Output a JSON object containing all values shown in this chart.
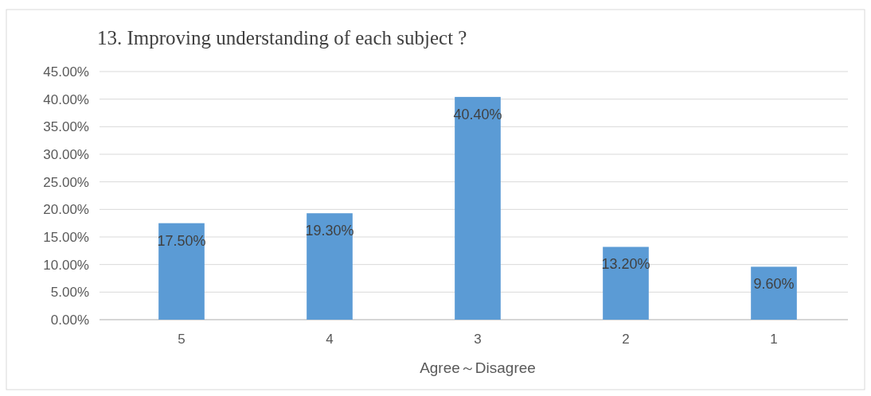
{
  "chart_data": {
    "type": "bar",
    "title": "13. Improving understanding of each subject ?",
    "xlabel": "Agree～Disagree",
    "categories": [
      "5",
      "4",
      "3",
      "2",
      "1"
    ],
    "values": [
      17.5,
      19.3,
      40.4,
      13.2,
      9.6
    ],
    "value_labels": [
      "17.50%",
      "19.30%",
      "40.40%",
      "13.20%",
      "9.60%"
    ],
    "color": "#5b9bd5",
    "ylim": [
      0,
      45
    ],
    "yticks": [
      {
        "value": 0,
        "label": "0.00%"
      },
      {
        "value": 5,
        "label": "5.00%"
      },
      {
        "value": 10,
        "label": "10.00%"
      },
      {
        "value": 15,
        "label": "15.00%"
      },
      {
        "value": 20,
        "label": "20.00%"
      },
      {
        "value": 25,
        "label": "25.00%"
      },
      {
        "value": 30,
        "label": "30.00%"
      },
      {
        "value": 35,
        "label": "35.00%"
      },
      {
        "value": 40,
        "label": "40.00%"
      },
      {
        "value": 45,
        "label": "45.00%"
      }
    ],
    "grid": "y"
  }
}
